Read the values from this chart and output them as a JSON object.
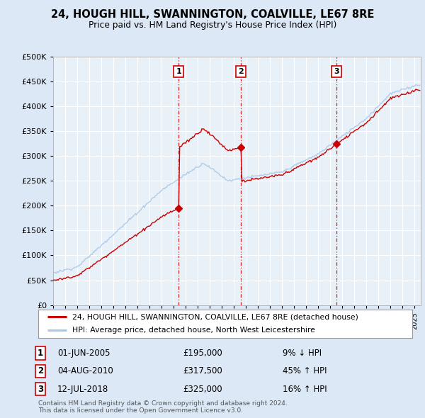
{
  "title": "24, HOUGH HILL, SWANNINGTON, COALVILLE, LE67 8RE",
  "subtitle": "Price paid vs. HM Land Registry's House Price Index (HPI)",
  "legend_line1": "24, HOUGH HILL, SWANNINGTON, COALVILLE, LE67 8RE (detached house)",
  "legend_line2": "HPI: Average price, detached house, North West Leicestershire",
  "footer1": "Contains HM Land Registry data © Crown copyright and database right 2024.",
  "footer2": "This data is licensed under the Open Government Licence v3.0.",
  "transactions": [
    {
      "num": 1,
      "date": "01-JUN-2005",
      "price": 195000,
      "hpi_pct": "9% ↓ HPI",
      "x_year": 2005.42
    },
    {
      "num": 2,
      "date": "04-AUG-2010",
      "price": 317500,
      "hpi_pct": "45% ↑ HPI",
      "x_year": 2010.59
    },
    {
      "num": 3,
      "date": "12-JUL-2018",
      "price": 325000,
      "hpi_pct": "16% ↑ HPI",
      "x_year": 2018.53
    }
  ],
  "hpi_color": "#aac8e8",
  "price_color": "#cc0000",
  "vline_color": "#cc0000",
  "background_color": "#dce8f5",
  "plot_bg": "#e8f0f8",
  "ylim": [
    0,
    500000
  ],
  "xlim_start": 1995.0,
  "xlim_end": 2025.5,
  "ytick_step": 50000
}
